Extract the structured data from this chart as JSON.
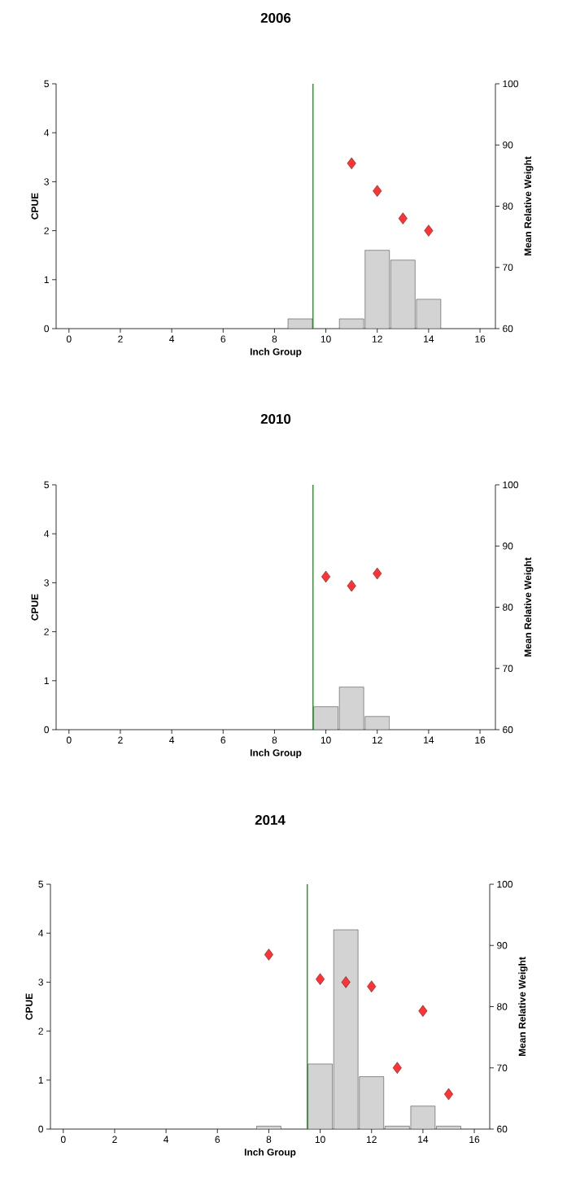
{
  "chart_data": [
    {
      "type": "bar",
      "title": "2006",
      "xlabel": "Inch Group",
      "ylabel": "CPUE",
      "y2label": "Mean Relative Weight",
      "xlim": [
        -0.5,
        16.6
      ],
      "xticks": [
        0,
        2,
        4,
        6,
        8,
        10,
        12,
        14,
        16
      ],
      "ylim": [
        0,
        5
      ],
      "yticks": [
        0,
        1,
        2,
        3,
        4,
        5
      ],
      "y2lim": [
        60,
        100
      ],
      "y2ticks": [
        60,
        70,
        80,
        90,
        100
      ],
      "series": [
        {
          "color": "#d3d3d3",
          "x": [
            9,
            11,
            12,
            13,
            14
          ],
          "values": [
            0.2,
            0.2,
            1.6,
            1.4,
            0.6
          ]
        },
        {
          "type": "scatter",
          "axis": "y2",
          "marker": "diamond",
          "color": "#ff3333",
          "x": [
            11,
            12,
            13,
            14
          ],
          "values": [
            87,
            82.5,
            78,
            76
          ]
        }
      ],
      "ref_lines": [
        {
          "axis": "x",
          "value": 9.5,
          "color": "#008000"
        }
      ]
    },
    {
      "type": "bar",
      "title": "2010",
      "xlabel": "Inch Group",
      "ylabel": "CPUE",
      "y2label": "Mean Relative Weight",
      "xlim": [
        -0.5,
        16.6
      ],
      "xticks": [
        0,
        2,
        4,
        6,
        8,
        10,
        12,
        14,
        16
      ],
      "ylim": [
        0,
        5
      ],
      "yticks": [
        0,
        1,
        2,
        3,
        4,
        5
      ],
      "y2lim": [
        60,
        100
      ],
      "y2ticks": [
        60,
        70,
        80,
        90,
        100
      ],
      "series": [
        {
          "color": "#d3d3d3",
          "x": [
            10,
            11,
            12
          ],
          "values": [
            0.47,
            0.87,
            0.27
          ]
        },
        {
          "type": "scatter",
          "axis": "y2",
          "marker": "diamond",
          "color": "#ff3333",
          "x": [
            10,
            11,
            12
          ],
          "values": [
            85,
            83.5,
            85.5
          ]
        }
      ],
      "ref_lines": [
        {
          "axis": "x",
          "value": 9.5,
          "color": "#008000"
        }
      ]
    },
    {
      "type": "bar",
      "title": "2014",
      "xlabel": "Inch Group",
      "ylabel": "CPUE",
      "y2label": "Mean Relative Weight",
      "xlim": [
        -0.5,
        16.6
      ],
      "xticks": [
        0,
        2,
        4,
        6,
        8,
        10,
        12,
        14,
        16
      ],
      "ylim": [
        0,
        5
      ],
      "yticks": [
        0,
        1,
        2,
        3,
        4,
        5
      ],
      "y2lim": [
        60,
        100
      ],
      "y2ticks": [
        60,
        70,
        80,
        90,
        100
      ],
      "series": [
        {
          "color": "#d3d3d3",
          "x": [
            8,
            10,
            11,
            12,
            13,
            14,
            15
          ],
          "values": [
            0.06,
            1.33,
            4.07,
            1.07,
            0.06,
            0.47,
            0.06
          ]
        },
        {
          "type": "scatter",
          "axis": "y2",
          "marker": "diamond",
          "color": "#ff3333",
          "x": [
            8,
            10,
            11,
            12,
            13,
            14,
            15
          ],
          "values": [
            88.5,
            84.5,
            84,
            83.3,
            70,
            79.3,
            65.7
          ]
        }
      ],
      "ref_lines": [
        {
          "axis": "x",
          "value": 9.5,
          "color": "#008000"
        }
      ]
    }
  ]
}
